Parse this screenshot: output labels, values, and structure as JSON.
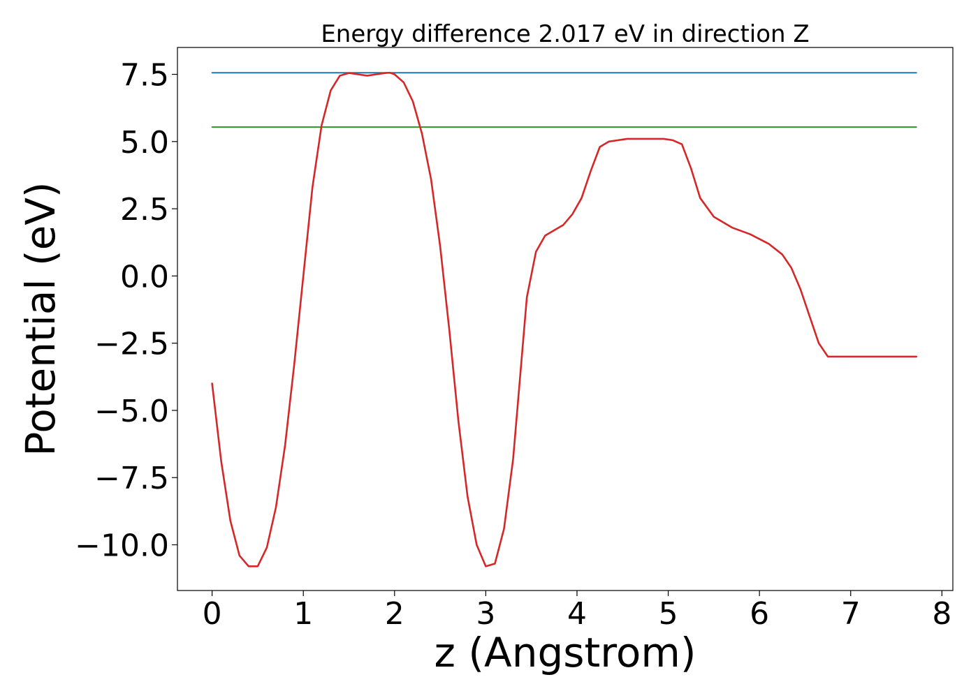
{
  "chart_data": {
    "type": "line",
    "title": "Energy difference 2.017 eV in direction Z",
    "xlabel": "z (Angstrom)",
    "ylabel": "Potential (eV)",
    "xlim": [
      -0.38,
      8.12
    ],
    "ylim": [
      -11.7,
      8.5
    ],
    "xticks": [
      0,
      1,
      2,
      3,
      4,
      5,
      6,
      7,
      8
    ],
    "xtick_labels": [
      "0",
      "1",
      "2",
      "3",
      "4",
      "5",
      "6",
      "7",
      "8"
    ],
    "yticks": [
      7.5,
      5.0,
      2.5,
      0.0,
      -2.5,
      -5.0,
      -7.5,
      -10.0
    ],
    "ytick_labels": [
      "7.5",
      "5.0",
      "2.5",
      "0.0",
      "−2.5",
      "−5.0",
      "−7.5",
      "−10.0"
    ],
    "grid": false,
    "colors": {
      "potential": "#d62728",
      "upper_level": "#1f77b4",
      "lower_level": "#2ca02c"
    },
    "series": [
      {
        "x": [
          0.0,
          0.1,
          0.2,
          0.3,
          0.4,
          0.5,
          0.6,
          0.7,
          0.8,
          0.9,
          1.0,
          1.1,
          1.2,
          1.3,
          1.4,
          1.5,
          1.6,
          1.7,
          1.8,
          1.9,
          1.95,
          2.0,
          2.1,
          2.2,
          2.3,
          2.4,
          2.5,
          2.6,
          2.7,
          2.8,
          2.9,
          3.0,
          3.1,
          3.2,
          3.3,
          3.37,
          3.45,
          3.55,
          3.65,
          3.75,
          3.85,
          3.95,
          4.05,
          4.15,
          4.25,
          4.35,
          4.45,
          4.55,
          4.65,
          4.75,
          4.85,
          4.95,
          5.05,
          5.15,
          5.25,
          5.35,
          5.5,
          5.7,
          5.9,
          6.1,
          6.25,
          6.35,
          6.45,
          6.55,
          6.65,
          6.75,
          6.85,
          6.95,
          7.05,
          7.15,
          7.25,
          7.35,
          7.45,
          7.55,
          7.65,
          7.72
        ],
        "y": [
          -4.0,
          -6.9,
          -9.1,
          -10.4,
          -10.8,
          -10.8,
          -10.1,
          -8.6,
          -6.3,
          -3.3,
          0.0,
          3.3,
          5.6,
          6.9,
          7.45,
          7.55,
          7.5,
          7.45,
          7.5,
          7.55,
          7.56,
          7.5,
          7.2,
          6.5,
          5.3,
          3.6,
          1.1,
          -2.0,
          -5.4,
          -8.2,
          -10.0,
          -10.8,
          -10.7,
          -9.4,
          -6.8,
          -4.0,
          -0.8,
          0.9,
          1.5,
          1.7,
          1.9,
          2.3,
          2.9,
          3.9,
          4.8,
          5.0,
          5.05,
          5.1,
          5.1,
          5.1,
          5.1,
          5.1,
          5.05,
          4.9,
          4.0,
          2.9,
          2.2,
          1.8,
          1.55,
          1.2,
          0.8,
          0.3,
          -0.5,
          -1.5,
          -2.5,
          -3.0,
          -3.0,
          -3.0,
          -3.0,
          -3.0,
          -3.0,
          -3.0,
          -3.0,
          -3.0,
          -3.0,
          -3.0
        ]
      },
      {
        "x": [
          0.0,
          7.72
        ],
        "y": [
          7.56,
          7.56
        ]
      },
      {
        "x": [
          0.0,
          7.72
        ],
        "y": [
          5.54,
          5.54
        ]
      }
    ]
  }
}
